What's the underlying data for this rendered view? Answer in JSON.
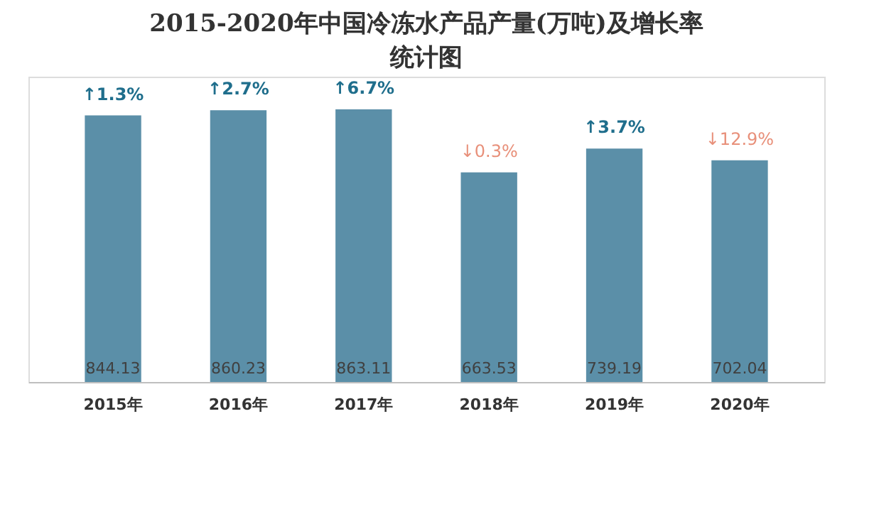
{
  "chart_data": {
    "type": "bar",
    "title": "2015-2020年中国冷冻水产品产量(万吨)及增长率统计图",
    "categories": [
      "2015年",
      "2016年",
      "2017年",
      "2018年",
      "2019年",
      "2020年"
    ],
    "values": [
      844.13,
      860.23,
      863.11,
      663.53,
      739.19,
      702.04
    ],
    "color": "#5b8fa8",
    "data_labels": true,
    "grid": false,
    "annotations": [
      {
        "text": "↑1.3%",
        "x": "2015年",
        "y": 844.13
      },
      {
        "text": "↑2.7%",
        "x": "2016年",
        "y": 860.23
      },
      {
        "text": "↑6.7%",
        "x": "2017年",
        "y": 863.11
      },
      {
        "text": "↓0.3%",
        "x": "2018年",
        "y": 663.53
      },
      {
        "text": "↑3.7%",
        "x": "2019年",
        "y": 739.19
      },
      {
        "text": "↓12.9%",
        "x": "2020年",
        "y": 702.04
      }
    ]
  }
}
